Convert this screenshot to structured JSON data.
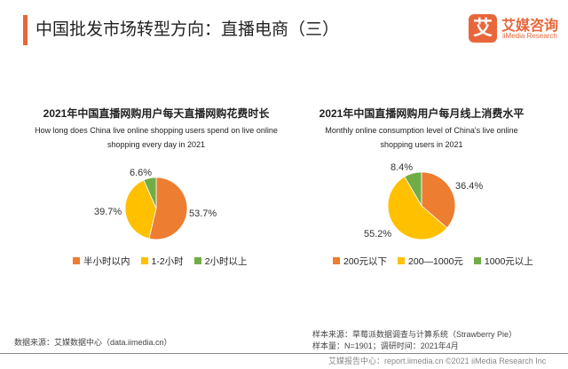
{
  "header": {
    "title": "中国批发市场转型方向：直播电商（三）",
    "logo_mark": "艾",
    "logo_cn": "艾媒咨询",
    "logo_en": "iiMedia Research"
  },
  "colors": {
    "orange": "#ED7D31",
    "yellow": "#FFC000",
    "green": "#70AD47",
    "accent": "#E8663A"
  },
  "chart_data": [
    {
      "type": "pie",
      "title": "2021年中国直播网购用户每天直播网购花费时长",
      "subtitle_lines": [
        "How long does China live online shopping users spend on live online",
        "shopping every day in 2021"
      ],
      "categories": [
        "半小时以内",
        "1-2小时",
        "2小时以上"
      ],
      "values": [
        53.7,
        39.7,
        6.6
      ],
      "labels": [
        "53.7%",
        "39.7%",
        "6.6%"
      ],
      "legend": "bottom"
    },
    {
      "type": "pie",
      "title": "2021年中国直播网购用户每月线上消费水平",
      "subtitle_lines": [
        "Monthly online consumption level of China's live online",
        "shopping users in 2021"
      ],
      "categories": [
        "200元以下",
        "200—1000元",
        "1000元以上"
      ],
      "values": [
        36.4,
        55.2,
        8.4
      ],
      "labels": [
        "36.4%",
        "55.2%",
        "8.4%"
      ],
      "legend": "bottom"
    }
  ],
  "footer": {
    "source": "数据来源：艾媒数据中心（data.iimedia.cn）",
    "sample_source": "样本来源：草莓派数据调查与计算系统（Strawberry Pie）",
    "sample_info": "样本量：N=1901；调研时间：2021年4月",
    "copyright": "艾媒报告中心：report.iimedia.cn  ©2021  iiMedia Research Inc"
  }
}
